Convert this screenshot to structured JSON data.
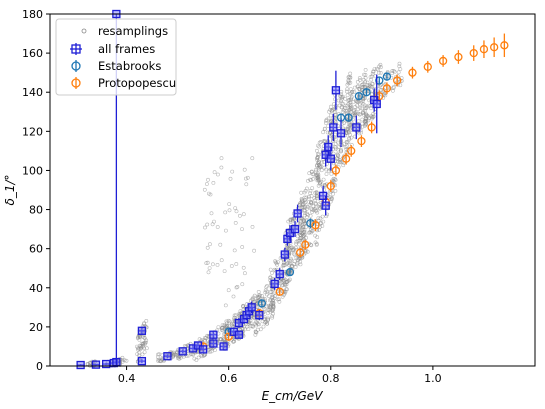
{
  "chart_data": {
    "type": "scatter",
    "title": "",
    "xlabel": "E_cm/GeV",
    "ylabel": "δ_1/°",
    "xlim": [
      0.25,
      1.2
    ],
    "ylim": [
      0,
      180
    ],
    "xticks": [
      0.4,
      0.6,
      0.8,
      1.0
    ],
    "yticks": [
      0,
      20,
      40,
      60,
      80,
      100,
      120,
      140,
      160,
      180
    ],
    "grid": false,
    "legend_position": "top-left",
    "legend": [
      "resamplings",
      "all frames",
      "Estabrooks",
      "Protopopescu"
    ],
    "colors": {
      "resamplings": "#888888",
      "all_frames": "#1f1fd6",
      "estabrooks": "#1f77b4",
      "protopopescu": "#ff7f0e"
    },
    "series": [
      {
        "name": "all frames",
        "points": [
          [
            0.31,
            0.5,
            0.5
          ],
          [
            0.34,
            0.7,
            0.5
          ],
          [
            0.36,
            1.0,
            0.6
          ],
          [
            0.375,
            1.5,
            0.8
          ],
          [
            0.38,
            2.0,
            1.0
          ],
          [
            0.38,
            180.0,
            180.0
          ],
          [
            0.43,
            2.5,
            1.0
          ],
          [
            0.43,
            18.0,
            2.0
          ],
          [
            0.48,
            5.0,
            1.0
          ],
          [
            0.51,
            7.5,
            1.0
          ],
          [
            0.53,
            9.0,
            1.5
          ],
          [
            0.54,
            10.5,
            1.5
          ],
          [
            0.55,
            8.5,
            1.5
          ],
          [
            0.57,
            11.5,
            2.0
          ],
          [
            0.57,
            16.0,
            2.0
          ],
          [
            0.59,
            10.0,
            2.0
          ],
          [
            0.61,
            17.5,
            2.0
          ],
          [
            0.62,
            22.0,
            2.5
          ],
          [
            0.62,
            16.0,
            2.0
          ],
          [
            0.63,
            24.0,
            2.5
          ],
          [
            0.635,
            26.0,
            2.5
          ],
          [
            0.64,
            28.0,
            3.0
          ],
          [
            0.645,
            30.0,
            3.0
          ],
          [
            0.66,
            26.0,
            2.5
          ],
          [
            0.69,
            42.0,
            3.0
          ],
          [
            0.7,
            47.0,
            3.0
          ],
          [
            0.71,
            57.0,
            3.5
          ],
          [
            0.715,
            65.0,
            3.5
          ],
          [
            0.72,
            68.0,
            4.0
          ],
          [
            0.73,
            70.0,
            4.0
          ],
          [
            0.735,
            78.0,
            4.5
          ],
          [
            0.785,
            87.0,
            5.0
          ],
          [
            0.79,
            82.0,
            5.0
          ],
          [
            0.79,
            108.0,
            6.0
          ],
          [
            0.795,
            112.0,
            6.0
          ],
          [
            0.8,
            106.0,
            6.0
          ],
          [
            0.805,
            122.0,
            7.0
          ],
          [
            0.81,
            141.0,
            10.0
          ],
          [
            0.82,
            119.0,
            7.0
          ],
          [
            0.85,
            122.0,
            6.0
          ],
          [
            0.885,
            136.0,
            6.0
          ],
          [
            0.89,
            134.0,
            15.0
          ]
        ]
      },
      {
        "name": "Estabrooks",
        "points": [
          [
            0.6,
            17.5,
            1.5
          ],
          [
            0.665,
            32.0,
            2.0
          ],
          [
            0.72,
            48.0,
            2.0
          ],
          [
            0.76,
            73.0,
            2.5
          ],
          [
            0.82,
            127.0,
            2.0
          ],
          [
            0.835,
            127.0,
            2.0
          ],
          [
            0.855,
            138.0,
            2.0
          ],
          [
            0.87,
            140.0,
            2.0
          ],
          [
            0.895,
            146.0,
            2.0
          ],
          [
            0.91,
            148.0,
            2.0
          ]
        ]
      },
      {
        "name": "Protopopescu",
        "points": [
          [
            0.55,
            10.0,
            1.5
          ],
          [
            0.6,
            15.0,
            1.5
          ],
          [
            0.66,
            27.0,
            2.0
          ],
          [
            0.7,
            38.0,
            2.0
          ],
          [
            0.74,
            58.0,
            2.5
          ],
          [
            0.75,
            62.0,
            2.5
          ],
          [
            0.77,
            72.0,
            3.0
          ],
          [
            0.79,
            84.0,
            3.0
          ],
          [
            0.8,
            92.0,
            3.0
          ],
          [
            0.81,
            100.0,
            3.0
          ],
          [
            0.83,
            106.0,
            3.0
          ],
          [
            0.84,
            110.0,
            3.0
          ],
          [
            0.86,
            115.0,
            3.0
          ],
          [
            0.88,
            122.0,
            3.0
          ],
          [
            0.895,
            138.0,
            3.0
          ],
          [
            0.91,
            142.0,
            3.0
          ],
          [
            0.93,
            146.0,
            3.0
          ],
          [
            0.96,
            150.0,
            3.0
          ],
          [
            0.99,
            153.0,
            3.0
          ],
          [
            1.02,
            156.0,
            3.0
          ],
          [
            1.05,
            158.0,
            3.5
          ],
          [
            1.08,
            160.0,
            4.0
          ],
          [
            1.1,
            162.0,
            4.5
          ],
          [
            1.12,
            163.0,
            5.0
          ],
          [
            1.14,
            164.0,
            6.0
          ]
        ]
      },
      {
        "name": "resamplings",
        "clusters": [
          [
            0.33,
            0.5,
            1.5,
            0.01,
            30
          ],
          [
            0.38,
            1.5,
            2,
            0.02,
            40
          ],
          [
            0.43,
            12,
            8,
            0.01,
            60
          ],
          [
            0.48,
            5,
            2,
            0.02,
            40
          ],
          [
            0.52,
            8,
            3,
            0.02,
            40
          ],
          [
            0.55,
            10,
            5,
            0.02,
            60
          ],
          [
            0.58,
            14,
            6,
            0.02,
            60
          ],
          [
            0.61,
            19,
            7,
            0.02,
            80
          ],
          [
            0.64,
            26,
            8,
            0.02,
            100
          ],
          [
            0.67,
            30,
            10,
            0.02,
            100
          ],
          [
            0.7,
            45,
            12,
            0.02,
            120
          ],
          [
            0.73,
            65,
            15,
            0.02,
            140
          ],
          [
            0.76,
            80,
            20,
            0.02,
            140
          ],
          [
            0.79,
            100,
            25,
            0.02,
            160
          ],
          [
            0.82,
            120,
            20,
            0.02,
            140
          ],
          [
            0.85,
            130,
            15,
            0.02,
            120
          ],
          [
            0.88,
            138,
            12,
            0.02,
            100
          ],
          [
            0.92,
            146,
            6,
            0.02,
            40
          ],
          [
            0.58,
            80,
            30,
            0.03,
            30
          ],
          [
            0.62,
            60,
            35,
            0.03,
            30
          ]
        ]
      }
    ]
  }
}
